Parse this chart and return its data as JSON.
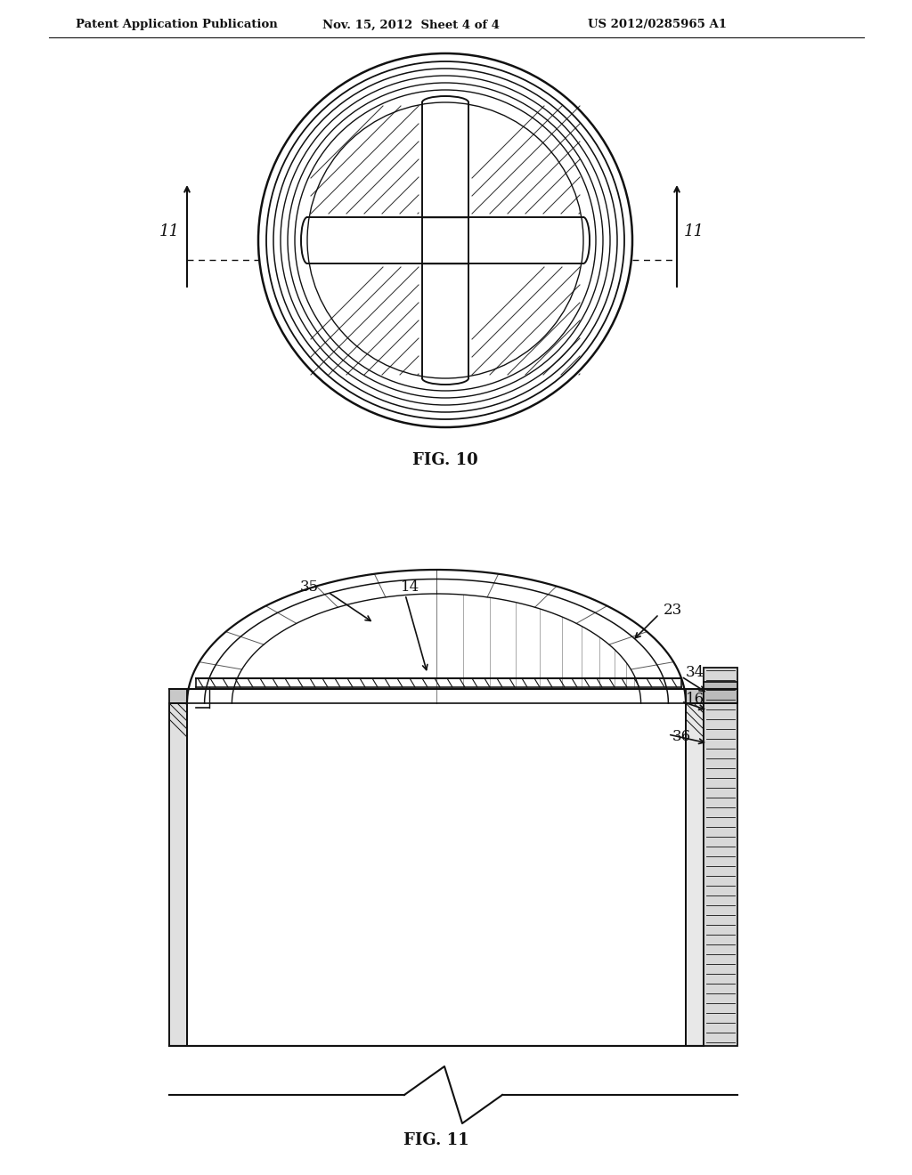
{
  "bg_color": "#ffffff",
  "header_left": "Patent Application Publication",
  "header_mid": "Nov. 15, 2012  Sheet 4 of 4",
  "header_right": "US 2012/0285965 A1",
  "fig10_label": "FIG. 10",
  "fig11_label": "FIG. 11",
  "lc": "#111111"
}
